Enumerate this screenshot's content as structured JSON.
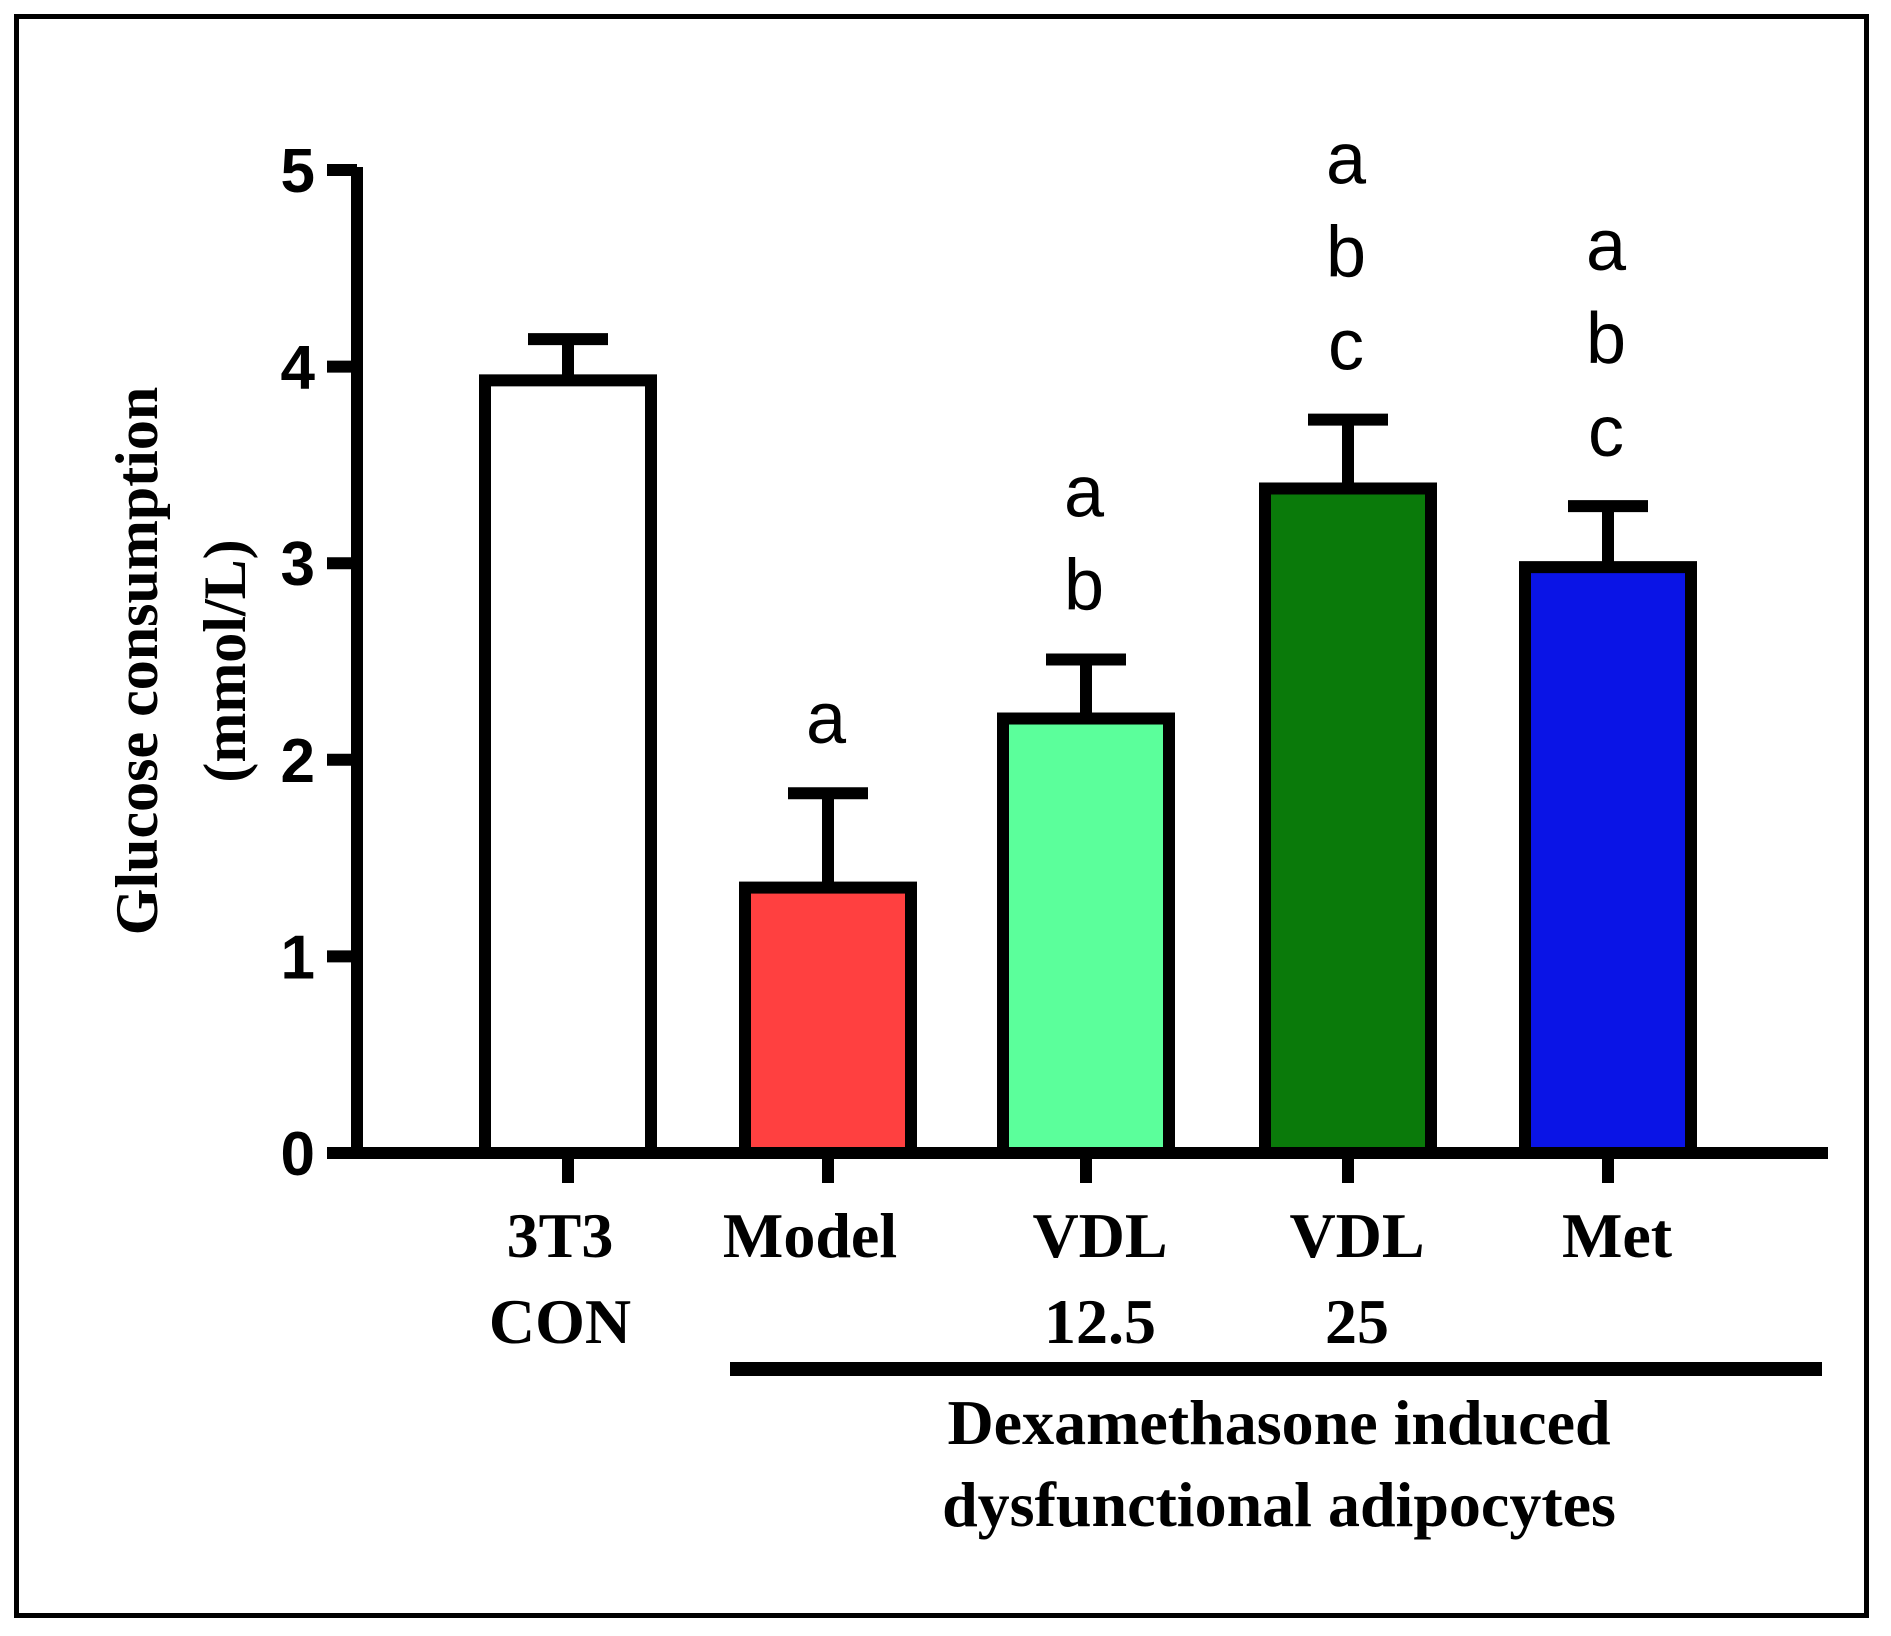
{
  "chart_data": {
    "type": "bar",
    "title": "",
    "xlabel": "",
    "ylabel": [
      "Glucose consumption",
      "(mmol/L)"
    ],
    "ylim": [
      0,
      5
    ],
    "yticks": [
      0,
      1,
      2,
      3,
      4,
      5
    ],
    "categories": [
      {
        "lines": [
          "3T3",
          "CON"
        ]
      },
      {
        "lines": [
          "Model"
        ]
      },
      {
        "lines": [
          "VDL",
          "12.5"
        ]
      },
      {
        "lines": [
          "VDL",
          "25"
        ]
      },
      {
        "lines": [
          "Met"
        ]
      }
    ],
    "values": [
      3.93,
      1.35,
      2.21,
      3.38,
      2.98
    ],
    "errors": [
      0.21,
      0.48,
      0.3,
      0.35,
      0.31
    ],
    "colors": [
      "#ffffff",
      "#ff4040",
      "#5bff9b",
      "#0a7a0a",
      "#0a14e6"
    ],
    "significance": [
      [],
      [
        "a"
      ],
      [
        "a",
        "b"
      ],
      [
        "a",
        "b",
        "c"
      ],
      [
        "a",
        "b",
        "c"
      ]
    ],
    "group_bracket": {
      "label": [
        "Dexamethasone induced",
        "dysfunctional adipocytes"
      ]
    }
  }
}
